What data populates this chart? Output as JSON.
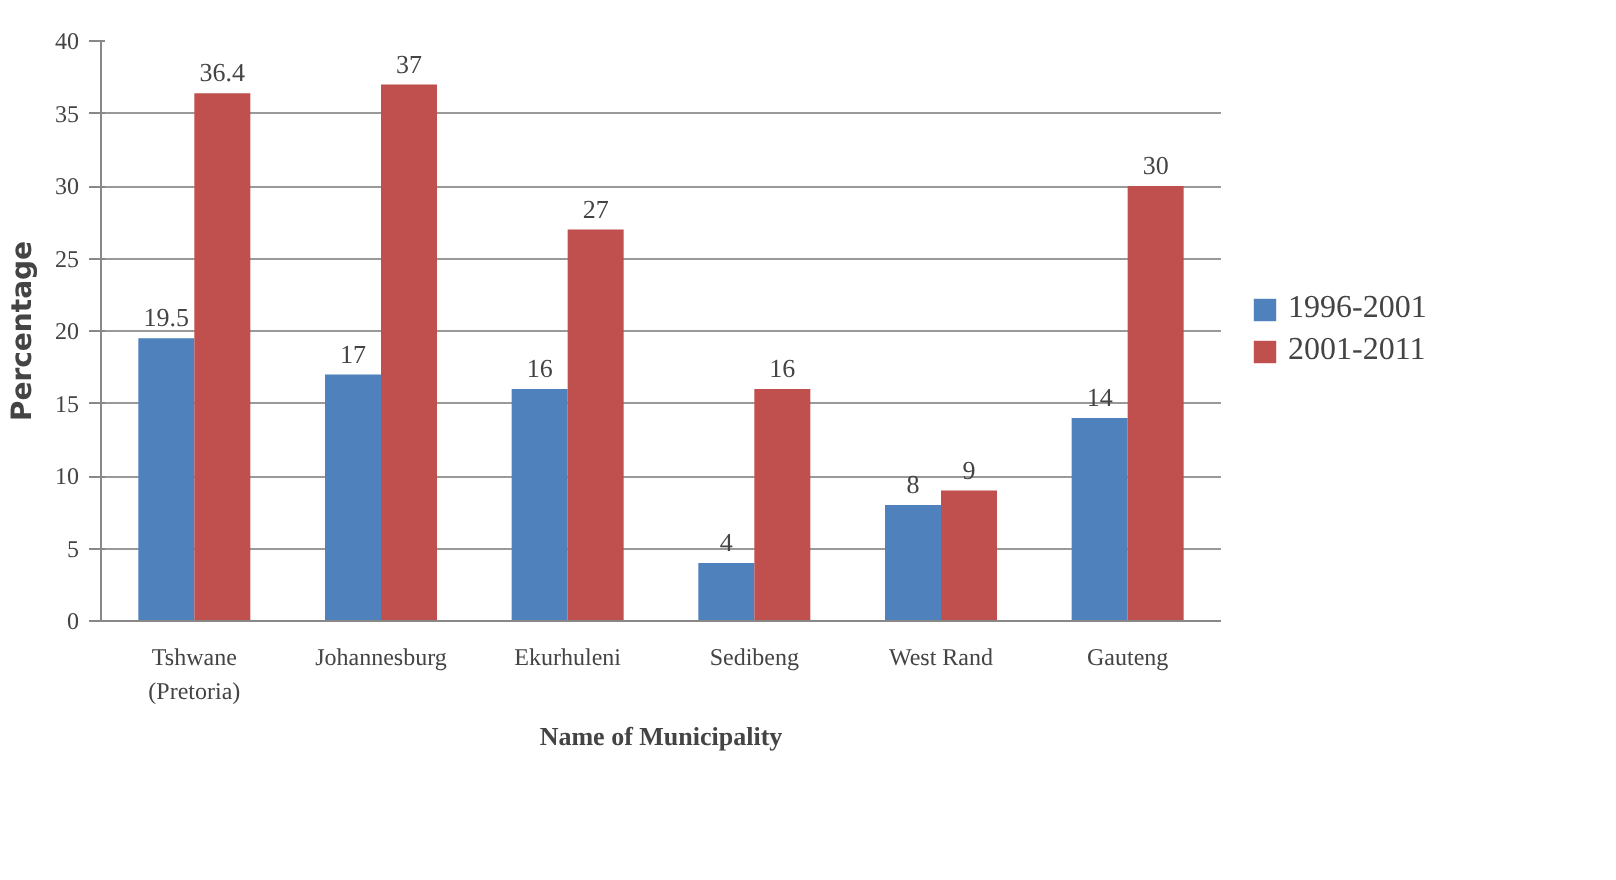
{
  "chart_data": {
    "type": "bar",
    "xlabel": "Name of Municipality",
    "ylabel": "Percentage",
    "categories": [
      "Tshwane\n(Pretoria)",
      "Johannesburg",
      "Ekurhuleni",
      "Sedibeng",
      "West Rand",
      "Gauteng"
    ],
    "series": [
      {
        "name": "1996-2001",
        "color": "#4f81bd",
        "values": [
          19.5,
          17,
          16,
          4,
          8,
          14
        ]
      },
      {
        "name": "2001-2011",
        "color": "#c0504d",
        "values": [
          36.4,
          37,
          27,
          16,
          9,
          30
        ]
      }
    ],
    "ylim": [
      0,
      40
    ],
    "yticks": [
      0,
      5,
      10,
      15,
      20,
      25,
      30,
      35,
      40
    ],
    "grid": "y",
    "legend": "right",
    "data_labels": true
  }
}
